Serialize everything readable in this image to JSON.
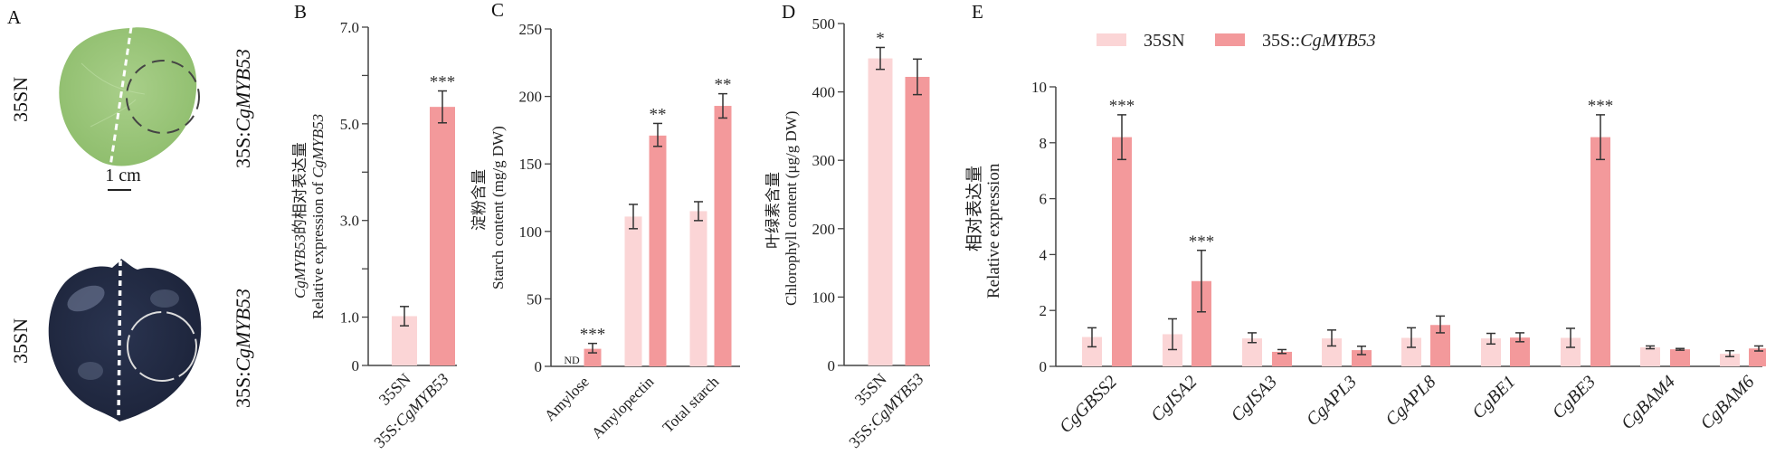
{
  "figure": {
    "colors": {
      "control": "#fbd5d6",
      "overexpression": "#f3999b",
      "axis": "#444444",
      "errorbar": "#333333"
    },
    "panel_a": {
      "letter": "A",
      "row_labels_left": [
        "35SN",
        "35SN"
      ],
      "row_labels_right_prefix": [
        "35S:",
        "35S:"
      ],
      "row_labels_right_gene": [
        "CgMYB53",
        "CgMYB53"
      ],
      "scale_bar": "1 cm",
      "images": [
        "fresh-leaf-photo",
        "iodine-stained-leaf-photo"
      ]
    },
    "legend": {
      "items": [
        {
          "label": "35SN",
          "gene": ""
        },
        {
          "label": "35S::",
          "gene": "CgMYB53"
        }
      ]
    }
  },
  "chart_data": [
    {
      "id": "B",
      "letter": "B",
      "type": "bar",
      "categories": [
        "35SN",
        "35S:CgMYB53"
      ],
      "category_prefix": [
        "35SN",
        "35S:"
      ],
      "category_gene": [
        "",
        "CgMYB53"
      ],
      "values": [
        1.02,
        5.35
      ],
      "err_low": [
        0.82,
        5.02
      ],
      "err_high": [
        1.22,
        5.68
      ],
      "significance": [
        "",
        "***"
      ],
      "ylabel_line1_gene": "CgMYB53",
      "ylabel_line1_rest": "的相对表达量",
      "ylabel_line2": "Relative expression of ",
      "ylabel_line2_gene": "CgMYB53",
      "ylim": [
        0,
        7
      ],
      "yticks": [
        0,
        1,
        2,
        3,
        4,
        5,
        6,
        7
      ],
      "ytick_labels": [
        "0",
        "1.0",
        "",
        "3.0",
        "",
        "5.0",
        "",
        "7.0"
      ]
    },
    {
      "id": "C",
      "letter": "C",
      "type": "bar",
      "categories": [
        "Amylose",
        "Amylopectin",
        "Total starch"
      ],
      "series": [
        {
          "name": "35SN",
          "values": [
            0,
            111,
            115
          ],
          "err_low": [
            0,
            102,
            108
          ],
          "err_high": [
            0,
            120,
            122
          ],
          "significance": [
            "",
            "",
            ""
          ],
          "annotations": [
            "ND",
            "",
            ""
          ]
        },
        {
          "name": "35S::CgMYB53",
          "values": [
            13,
            171,
            193
          ],
          "err_low": [
            10,
            163,
            184
          ],
          "err_high": [
            17,
            180,
            202
          ],
          "significance": [
            "***",
            "**",
            "**"
          ],
          "annotations": [
            "",
            "",
            ""
          ]
        }
      ],
      "ylabel_line1": "淀粉含量",
      "ylabel_line2": "Starch content (mg/g DW)",
      "ylim": [
        0,
        250
      ],
      "yticks": [
        0,
        50,
        100,
        150,
        200,
        250
      ],
      "ytick_labels": [
        "0",
        "50",
        "100",
        "150",
        "200",
        "250"
      ]
    },
    {
      "id": "D",
      "letter": "D",
      "type": "bar",
      "categories": [
        "35SN",
        "35S:CgMYB53"
      ],
      "category_prefix": [
        "35SN",
        "35S:"
      ],
      "category_gene": [
        "",
        "CgMYB53"
      ],
      "values": [
        449,
        422
      ],
      "err_low": [
        433,
        396
      ],
      "err_high": [
        465,
        448
      ],
      "significance": [
        "*",
        ""
      ],
      "ylabel_line1": "叶绿素含量",
      "ylabel_line2": "Chlorophyll content (μg/g DW)",
      "ylim": [
        0,
        500
      ],
      "yticks": [
        0,
        100,
        200,
        300,
        400,
        500
      ],
      "ytick_labels": [
        "0",
        "100",
        "200",
        "300",
        "400",
        "500"
      ]
    },
    {
      "id": "E",
      "letter": "E",
      "type": "bar",
      "categories": [
        "CgGBSS2",
        "CgISA2",
        "CgISA3",
        "CgAPL3",
        "CgAPL8",
        "CgBE1",
        "CgBE3",
        "CgBAM4",
        "CgBAM6"
      ],
      "series": [
        {
          "name": "35SN",
          "values": [
            1.05,
            1.15,
            1.0,
            1.0,
            1.02,
            1.0,
            1.02,
            0.68,
            0.45
          ],
          "err_low": [
            0.7,
            0.6,
            0.85,
            0.73,
            0.68,
            0.8,
            0.68,
            0.63,
            0.35
          ],
          "err_high": [
            1.38,
            1.7,
            1.2,
            1.3,
            1.38,
            1.18,
            1.36,
            0.73,
            0.56
          ],
          "significance": [
            "",
            "",
            "",
            "",
            "",
            "",
            "",
            "",
            ""
          ]
        },
        {
          "name": "35S::CgMYB53",
          "values": [
            8.2,
            3.05,
            0.52,
            0.58,
            1.48,
            1.03,
            8.2,
            0.61,
            0.64
          ],
          "err_low": [
            7.4,
            1.95,
            0.46,
            0.42,
            1.2,
            0.88,
            7.4,
            0.58,
            0.55
          ],
          "err_high": [
            9.0,
            4.15,
            0.6,
            0.72,
            1.8,
            1.2,
            9.0,
            0.64,
            0.73
          ],
          "significance": [
            "***",
            "***",
            "",
            "",
            "",
            "",
            "***",
            "",
            ""
          ]
        }
      ],
      "ylabel_line1": "相对表达量",
      "ylabel_line2": "Relative expression",
      "ylim": [
        0,
        10
      ],
      "yticks": [
        0,
        2,
        4,
        6,
        8,
        10
      ],
      "ytick_labels": [
        "0",
        "2",
        "4",
        "6",
        "8",
        "10"
      ],
      "legend_position": "top"
    }
  ]
}
